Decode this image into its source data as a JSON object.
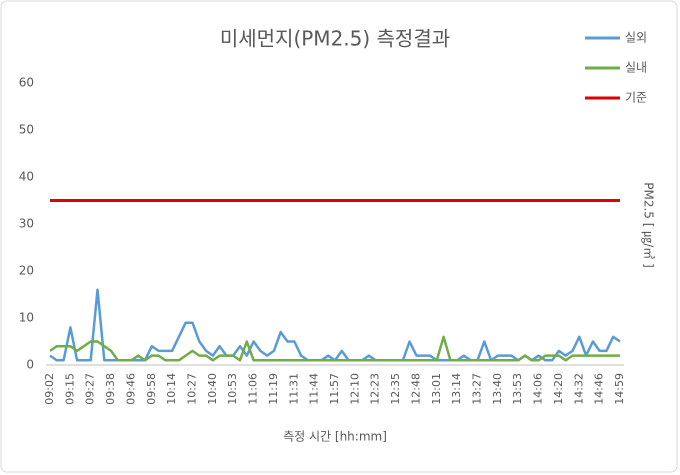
{
  "chart_data": {
    "type": "line",
    "title": "미세먼지(PM2.5) 측정결과",
    "x_label": "측정 시간 [hh:mm]",
    "y_label": "PM2.5 [ ㎍/㎥ ]",
    "categories": [
      "09:02",
      null,
      null,
      "09:15",
      null,
      null,
      "09:27",
      null,
      null,
      "09:38",
      null,
      null,
      "09:46",
      null,
      null,
      "09:58",
      null,
      null,
      "10:14",
      null,
      null,
      "10:27",
      null,
      null,
      "10:40",
      null,
      null,
      "10:53",
      null,
      null,
      "11:06",
      null,
      null,
      "11:19",
      null,
      null,
      "11:31",
      null,
      null,
      "11:44",
      null,
      null,
      "11:57",
      null,
      null,
      "12:10",
      null,
      null,
      "12:23",
      null,
      null,
      "12:35",
      null,
      null,
      "12:48",
      null,
      null,
      "13:01",
      null,
      null,
      "13:14",
      null,
      null,
      "13:27",
      null,
      null,
      "13:40",
      null,
      null,
      "13:53",
      null,
      null,
      "14:06",
      null,
      null,
      "14:20",
      null,
      null,
      "14:32",
      null,
      null,
      "14:46",
      null,
      null,
      "14:59"
    ],
    "series": [
      {
        "name": "실외",
        "color": "#5b9bd5",
        "values": [
          2,
          1,
          1,
          8,
          1,
          1,
          1,
          16,
          1,
          1,
          1,
          1,
          1,
          1,
          1,
          4,
          3,
          3,
          3,
          6,
          9,
          9,
          5,
          3,
          2,
          4,
          2,
          2,
          4,
          2,
          5,
          3,
          2,
          3,
          7,
          5,
          5,
          2,
          1,
          1,
          1,
          2,
          1,
          3,
          1,
          1,
          1,
          2,
          1,
          1,
          1,
          1,
          1,
          5,
          2,
          2,
          2,
          1,
          1,
          1,
          1,
          2,
          1,
          1,
          5,
          1,
          2,
          2,
          2,
          1,
          2,
          1,
          2,
          1,
          1,
          3,
          2,
          3,
          6,
          2,
          5,
          3,
          3,
          6,
          5
        ]
      },
      {
        "name": "실내",
        "color": "#70ad47",
        "values": [
          3,
          4,
          4,
          4,
          3,
          4,
          5,
          5,
          4,
          3,
          1,
          1,
          1,
          2,
          1,
          2,
          2,
          1,
          1,
          1,
          2,
          3,
          2,
          2,
          1,
          2,
          2,
          2,
          1,
          5,
          1,
          1,
          1,
          1,
          1,
          1,
          1,
          1,
          1,
          1,
          1,
          1,
          1,
          1,
          1,
          1,
          1,
          1,
          1,
          1,
          1,
          1,
          1,
          1,
          1,
          1,
          1,
          1,
          6,
          1,
          1,
          1,
          1,
          1,
          1,
          1,
          1,
          1,
          1,
          1,
          2,
          1,
          1,
          2,
          2,
          2,
          1,
          2,
          2,
          2,
          2,
          2,
          2,
          2,
          2
        ]
      },
      {
        "name": "기준",
        "color": "#e00000",
        "values": [
          35,
          35,
          35,
          35,
          35,
          35,
          35,
          35,
          35,
          35,
          35,
          35,
          35,
          35,
          35,
          35,
          35,
          35,
          35,
          35,
          35,
          35,
          35,
          35,
          35,
          35,
          35,
          35,
          35,
          35,
          35,
          35,
          35,
          35,
          35,
          35,
          35,
          35,
          35,
          35,
          35,
          35,
          35,
          35,
          35,
          35,
          35,
          35,
          35,
          35,
          35,
          35,
          35,
          35,
          35,
          35,
          35,
          35,
          35,
          35,
          35,
          35,
          35,
          35,
          35,
          35,
          35,
          35,
          35,
          35,
          35,
          35,
          35,
          35,
          35,
          35,
          35,
          35,
          35,
          35,
          35,
          35,
          35,
          35,
          35
        ]
      }
    ],
    "ylim": [
      0,
      60
    ],
    "yticks": [
      0,
      10,
      20,
      30,
      40,
      50,
      60
    ],
    "grid": false,
    "legend": "top-right"
  }
}
